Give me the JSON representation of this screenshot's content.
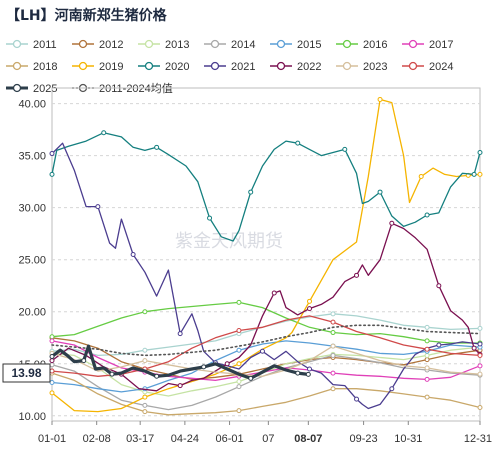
{
  "chart_data": {
    "type": "line",
    "title": "【LH】河南新郑生猪价格",
    "watermark": "紫金天风期货",
    "current_label": "13.98",
    "highlight_x_label": "08-07",
    "y_ticks": [
      "10.00",
      "15.00",
      "20.00",
      "25.00",
      "30.00",
      "35.00",
      "40.00"
    ],
    "ylim": [
      9.5,
      41.5
    ],
    "x_tick_labels": [
      "01-01",
      "02-08",
      "03-17",
      "04-24",
      "06-01",
      "07",
      "08-07",
      "09-23",
      "10-31",
      "12-31"
    ],
    "x_tick_days": [
      1,
      39,
      76,
      114,
      152,
      185,
      219,
      266,
      304,
      365
    ],
    "x_axis_range_days": [
      1,
      365
    ],
    "legend_columns": 7,
    "series": [
      {
        "name": "2011",
        "color": "#a9d3cf",
        "style": "solid",
        "x": [
          1,
          20,
          40,
          60,
          80,
          100,
          120,
          140,
          160,
          180,
          200,
          220,
          240,
          260,
          280,
          300,
          320,
          340,
          365
        ],
        "y": [
          16.2,
          16.4,
          15.8,
          15.9,
          16.3,
          16.6,
          16.9,
          17.2,
          17.9,
          18.5,
          19.1,
          19.5,
          19.8,
          19.6,
          19.2,
          18.7,
          18.5,
          18.3,
          18.4
        ]
      },
      {
        "name": "2012",
        "color": "#b0733a",
        "style": "solid",
        "x": [
          1,
          20,
          40,
          60,
          80,
          100,
          120,
          140,
          160,
          180,
          200,
          220,
          240,
          260,
          280,
          300,
          320,
          340,
          365
        ],
        "y": [
          17.5,
          17.2,
          16.5,
          15.2,
          14.5,
          14.0,
          13.5,
          13.7,
          14.0,
          14.5,
          15.0,
          15.4,
          15.6,
          15.4,
          15.1,
          14.9,
          15.4,
          15.9,
          16.3
        ]
      },
      {
        "name": "2013",
        "color": "#c5e3a4",
        "style": "solid",
        "x": [
          1,
          20,
          40,
          60,
          80,
          100,
          120,
          140,
          160,
          180,
          200,
          220,
          240,
          260,
          280,
          300,
          320,
          340,
          365
        ],
        "y": [
          16.0,
          15.8,
          14.6,
          13.0,
          12.3,
          11.9,
          12.4,
          12.8,
          13.3,
          14.1,
          15.0,
          15.5,
          15.9,
          15.8,
          15.6,
          15.4,
          15.8,
          16.3,
          16.6
        ]
      },
      {
        "name": "2014",
        "color": "#a8a8a8",
        "style": "solid",
        "x": [
          1,
          20,
          40,
          60,
          80,
          100,
          120,
          140,
          160,
          180,
          200,
          220,
          240,
          260,
          280,
          300,
          320,
          340,
          365
        ],
        "y": [
          14.9,
          14.3,
          12.8,
          11.5,
          11.0,
          10.6,
          11.0,
          11.8,
          12.8,
          13.8,
          14.6,
          15.2,
          15.8,
          15.5,
          15.1,
          14.6,
          14.4,
          14.1,
          13.9
        ]
      },
      {
        "name": "2015",
        "color": "#5a9ed6",
        "style": "solid",
        "x": [
          1,
          20,
          40,
          60,
          80,
          100,
          120,
          140,
          160,
          180,
          200,
          220,
          240,
          260,
          280,
          300,
          320,
          340,
          365
        ],
        "y": [
          13.2,
          13.0,
          12.6,
          12.3,
          12.6,
          13.4,
          14.1,
          15.3,
          16.3,
          16.9,
          17.2,
          17.0,
          16.7,
          16.4,
          16.0,
          15.9,
          16.2,
          16.8,
          16.6
        ]
      },
      {
        "name": "2016",
        "color": "#66cc44",
        "style": "solid",
        "x": [
          1,
          20,
          40,
          60,
          80,
          100,
          120,
          140,
          160,
          180,
          200,
          220,
          240,
          260,
          280,
          300,
          320,
          340,
          365
        ],
        "y": [
          17.6,
          17.8,
          18.6,
          19.4,
          20.0,
          20.3,
          20.5,
          20.7,
          20.9,
          20.4,
          19.4,
          18.5,
          18.0,
          17.8,
          17.9,
          17.6,
          17.2,
          17.0,
          17.0
        ]
      },
      {
        "name": "2017",
        "color": "#e040b8",
        "style": "solid",
        "x": [
          1,
          20,
          40,
          60,
          80,
          100,
          120,
          140,
          160,
          180,
          200,
          220,
          240,
          260,
          280,
          300,
          320,
          340,
          365
        ],
        "y": [
          17.2,
          16.8,
          15.6,
          14.6,
          14.2,
          13.8,
          13.6,
          13.4,
          13.8,
          14.2,
          14.6,
          14.4,
          14.1,
          13.9,
          13.8,
          13.6,
          13.5,
          13.7,
          14.8
        ]
      },
      {
        "name": "2018",
        "color": "#c9a86a",
        "style": "solid",
        "x": [
          1,
          20,
          40,
          60,
          80,
          100,
          120,
          140,
          160,
          180,
          200,
          220,
          240,
          260,
          280,
          300,
          320,
          340,
          365
        ],
        "y": [
          14.1,
          13.4,
          12.1,
          11.1,
          10.4,
          10.1,
          10.2,
          10.3,
          10.5,
          10.9,
          11.3,
          11.9,
          12.6,
          12.6,
          12.4,
          12.1,
          11.8,
          11.5,
          10.8
        ]
      },
      {
        "name": "2019",
        "color": "#f5b400",
        "style": "solid",
        "x": [
          1,
          20,
          40,
          60,
          80,
          100,
          120,
          140,
          160,
          180,
          200,
          205,
          220,
          240,
          260,
          270,
          280,
          290,
          300,
          305,
          315,
          325,
          335,
          345,
          355,
          365
        ],
        "y": [
          12.2,
          10.5,
          10.4,
          10.7,
          11.8,
          12.6,
          13.3,
          14.0,
          15.0,
          16.4,
          17.5,
          18.0,
          21.0,
          25.0,
          26.7,
          33.0,
          40.4,
          40.1,
          35.0,
          30.5,
          33.0,
          33.8,
          33.2,
          33.0,
          33.1,
          33.2
        ]
      },
      {
        "name": "2020",
        "color": "#147f7f",
        "style": "solid",
        "x": [
          1,
          5,
          15,
          30,
          45,
          60,
          70,
          80,
          90,
          100,
          115,
          125,
          135,
          145,
          155,
          160,
          170,
          180,
          190,
          200,
          210,
          220,
          230,
          240,
          250,
          260,
          265,
          270,
          280,
          290,
          300,
          310,
          320,
          330,
          340,
          350,
          360,
          365
        ],
        "y": [
          33.2,
          35.5,
          35.9,
          36.4,
          37.2,
          36.8,
          35.8,
          35.5,
          35.8,
          35.1,
          34.0,
          32.5,
          29.0,
          27.2,
          26.8,
          27.8,
          31.5,
          34.0,
          35.6,
          36.4,
          36.2,
          35.6,
          35.0,
          35.3,
          35.6,
          33.3,
          30.4,
          30.6,
          31.5,
          29.2,
          28.2,
          28.6,
          29.3,
          29.5,
          32.0,
          33.3,
          33.2,
          35.3
        ]
      },
      {
        "name": "2021",
        "color": "#4b3d8f",
        "style": "solid",
        "x": [
          1,
          10,
          20,
          30,
          40,
          50,
          55,
          60,
          70,
          80,
          90,
          100,
          110,
          120,
          125,
          130,
          140,
          150,
          160,
          170,
          180,
          190,
          200,
          210,
          220,
          230,
          240,
          250,
          260,
          265,
          270,
          280,
          290,
          300,
          310,
          320,
          330,
          340,
          350,
          365
        ],
        "y": [
          35.2,
          36.2,
          33.6,
          30.1,
          30.1,
          26.6,
          26.1,
          28.9,
          25.5,
          23.8,
          21.5,
          24.0,
          17.9,
          19.8,
          18.2,
          16.2,
          15.1,
          14.8,
          14.5,
          15.6,
          16.2,
          15.4,
          16.2,
          15.2,
          14.5,
          14.1,
          13.0,
          12.9,
          11.6,
          11.1,
          10.7,
          11.1,
          12.6,
          14.5,
          15.9,
          16.5,
          16.8,
          16.9,
          17.1,
          16.9
        ]
      },
      {
        "name": "2022",
        "color": "#7a1050",
        "style": "solid",
        "x": [
          1,
          15,
          30,
          45,
          60,
          75,
          90,
          100,
          110,
          120,
          130,
          140,
          150,
          160,
          170,
          180,
          190,
          195,
          200,
          210,
          220,
          230,
          240,
          250,
          260,
          265,
          270,
          280,
          290,
          300,
          310,
          320,
          330,
          340,
          350,
          355,
          360,
          365
        ],
        "y": [
          15.3,
          16.5,
          15.8,
          14.7,
          14.0,
          12.6,
          12.4,
          13.1,
          12.9,
          13.4,
          13.6,
          14.3,
          15.0,
          15.6,
          16.8,
          19.6,
          21.8,
          22.0,
          20.4,
          19.7,
          20.3,
          20.7,
          21.4,
          22.9,
          23.5,
          24.5,
          23.5,
          25.0,
          28.5,
          28.0,
          27.1,
          26.0,
          22.5,
          20.1,
          19.2,
          18.5,
          16.5,
          15.9
        ]
      },
      {
        "name": "2023",
        "color": "#d5bf9c",
        "style": "solid",
        "x": [
          1,
          20,
          40,
          60,
          80,
          100,
          120,
          140,
          160,
          180,
          200,
          220,
          240,
          260,
          280,
          300,
          320,
          340,
          365
        ],
        "y": [
          16.0,
          15.4,
          14.3,
          14.7,
          15.3,
          14.9,
          14.5,
          14.2,
          14.0,
          13.8,
          14.4,
          15.3,
          16.7,
          16.0,
          15.3,
          14.8,
          14.6,
          14.2,
          14.0
        ]
      },
      {
        "name": "2024",
        "color": "#d04a4a",
        "style": "solid",
        "x": [
          1,
          20,
          40,
          60,
          80,
          100,
          120,
          140,
          160,
          180,
          200,
          220,
          240,
          260,
          280,
          300,
          320,
          340,
          365
        ],
        "y": [
          14.3,
          14.1,
          13.8,
          14.0,
          14.5,
          15.2,
          16.5,
          17.5,
          18.2,
          18.5,
          19.2,
          19.6,
          19.0,
          18.1,
          17.5,
          16.8,
          16.4,
          16.0,
          15.8
        ]
      },
      {
        "name": "2025",
        "color": "#2d3e4a",
        "style": "bold",
        "x": [
          1,
          8,
          14,
          20,
          28,
          32,
          38,
          45,
          52,
          60,
          70,
          80,
          90,
          100,
          110,
          120,
          130,
          140,
          150,
          160,
          170,
          180,
          190,
          200,
          210,
          219
        ],
        "y": [
          15.7,
          16.3,
          15.8,
          15.2,
          15.3,
          16.7,
          14.5,
          14.6,
          14.0,
          14.1,
          14.6,
          14.3,
          13.8,
          13.9,
          14.3,
          14.5,
          14.7,
          15.0,
          14.5,
          14.0,
          13.6,
          14.2,
          14.8,
          14.4,
          14.1,
          13.98
        ]
      },
      {
        "name": "2011-2024均值",
        "color": "#555555",
        "style": "dotted",
        "x": [
          1,
          20,
          40,
          60,
          80,
          100,
          120,
          140,
          160,
          180,
          200,
          220,
          240,
          260,
          280,
          300,
          320,
          340,
          365
        ],
        "y": [
          16.8,
          16.6,
          16.4,
          16.0,
          15.8,
          15.9,
          16.1,
          16.3,
          16.7,
          17.1,
          17.6,
          18.0,
          18.5,
          18.7,
          18.7,
          18.4,
          18.1,
          18.0,
          17.9
        ]
      }
    ]
  }
}
